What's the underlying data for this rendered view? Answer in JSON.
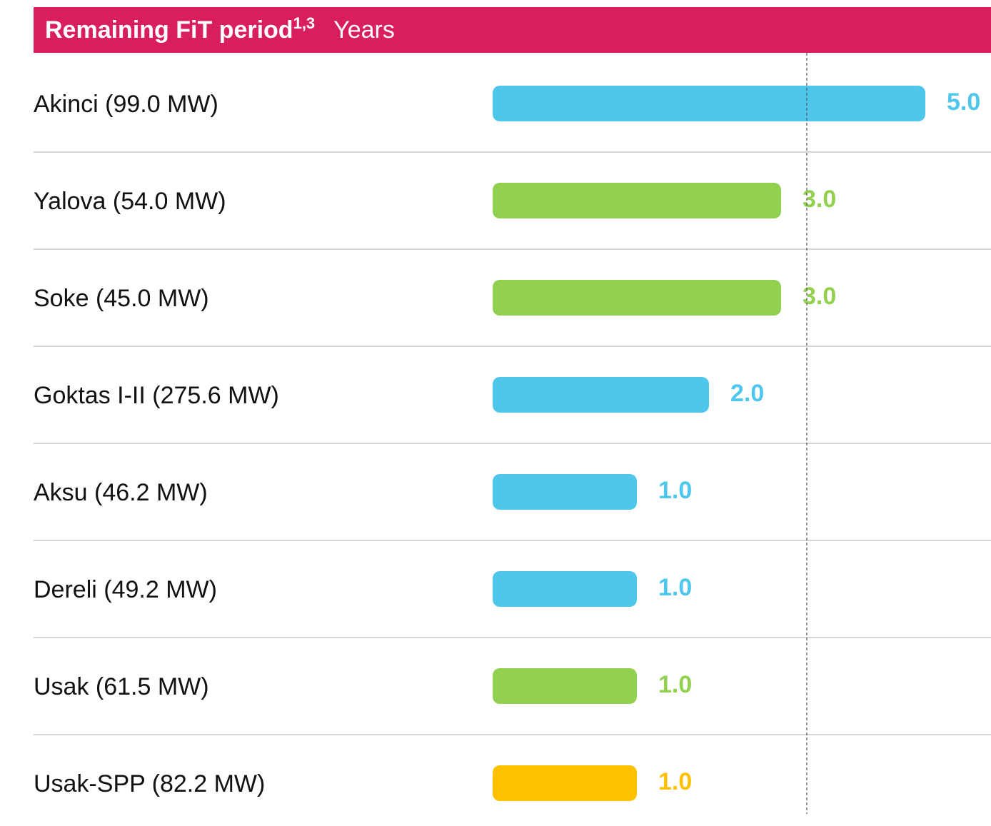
{
  "chart_data": {
    "type": "bar",
    "orientation": "horizontal",
    "title": "Remaining FiT period",
    "title_superscript": "1,3",
    "subtitle": "Years",
    "categories": [
      "Akinci (99.0 MW)",
      "Yalova (54.0 MW)",
      "Soke (45.0 MW)",
      "Goktas I-II (275.6 MW)",
      "Aksu (46.2 MW)",
      "Dereli (49.2 MW)",
      "Usak (61.5 MW)",
      "Usak-SPP (82.2 MW)"
    ],
    "values": [
      5,
      3,
      3,
      2,
      1,
      1,
      1,
      1
    ],
    "value_labels": [
      "5.0",
      "3.0",
      "3.0",
      "2.0",
      "1.0",
      "1.0",
      "1.0",
      "1.0"
    ],
    "colors": [
      "#4fc7ec",
      "#92d050",
      "#92d050",
      "#4fc7ec",
      "#4fc7ec",
      "#4fc7ec",
      "#92d050",
      "#ffc000"
    ],
    "xlim": [
      -1,
      5
    ]
  }
}
